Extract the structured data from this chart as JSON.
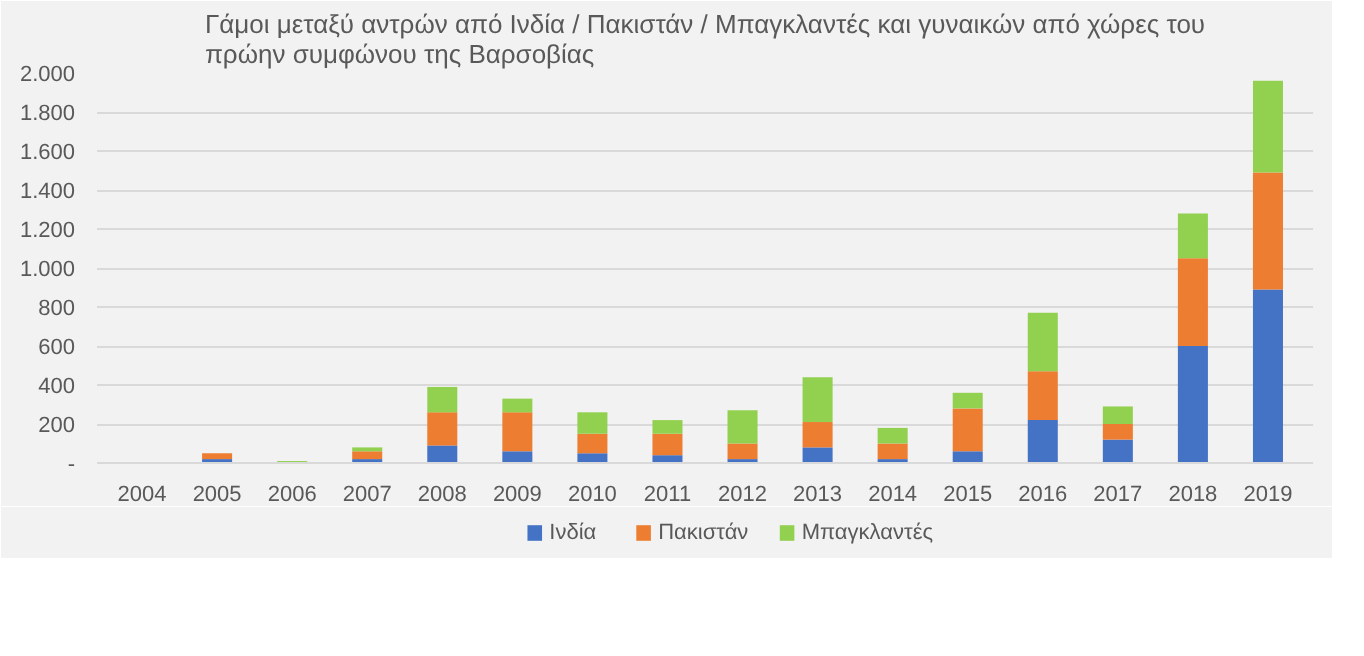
{
  "chart_data": {
    "type": "bar",
    "stacked": true,
    "title": "Γάμοι μεταξύ αντρών από Ινδία / Πακιστάν / Μπαγκλαντές και γυναικών από χώρες του πρώην συμφώνου της Βαρσοβίας",
    "categories": [
      "2004",
      "2005",
      "2006",
      "2007",
      "2008",
      "2009",
      "2010",
      "2011",
      "2012",
      "2013",
      "2014",
      "2015",
      "2016",
      "2017",
      "2018",
      "2019"
    ],
    "series": [
      {
        "name": "Ινδία",
        "color": "#4472c4",
        "values": [
          0,
          20,
          0,
          20,
          90,
          60,
          50,
          40,
          20,
          80,
          20,
          60,
          220,
          120,
          600,
          890
        ]
      },
      {
        "name": "Πακιστάν",
        "color": "#ed7d31",
        "values": [
          0,
          30,
          0,
          40,
          170,
          200,
          100,
          110,
          80,
          130,
          80,
          220,
          250,
          80,
          450,
          600
        ]
      },
      {
        "name": "Μπαγκλαντές",
        "color": "#92d050",
        "values": [
          0,
          0,
          10,
          20,
          130,
          70,
          110,
          70,
          170,
          230,
          80,
          80,
          300,
          90,
          230,
          470
        ]
      }
    ],
    "ylim": [
      0,
      2000
    ],
    "yticks": [
      {
        "value": 0,
        "label": "-"
      },
      {
        "value": 200,
        "label": "200"
      },
      {
        "value": 400,
        "label": "400"
      },
      {
        "value": 600,
        "label": "600"
      },
      {
        "value": 800,
        "label": "800"
      },
      {
        "value": 1000,
        "label": "1.000"
      },
      {
        "value": 1200,
        "label": "1.200"
      },
      {
        "value": 1400,
        "label": "1.400"
      },
      {
        "value": 1600,
        "label": "1.600"
      },
      {
        "value": 1800,
        "label": "1.800"
      },
      {
        "value": 2000,
        "label": "2.000"
      }
    ],
    "grid": "y",
    "legend": "bottom"
  }
}
